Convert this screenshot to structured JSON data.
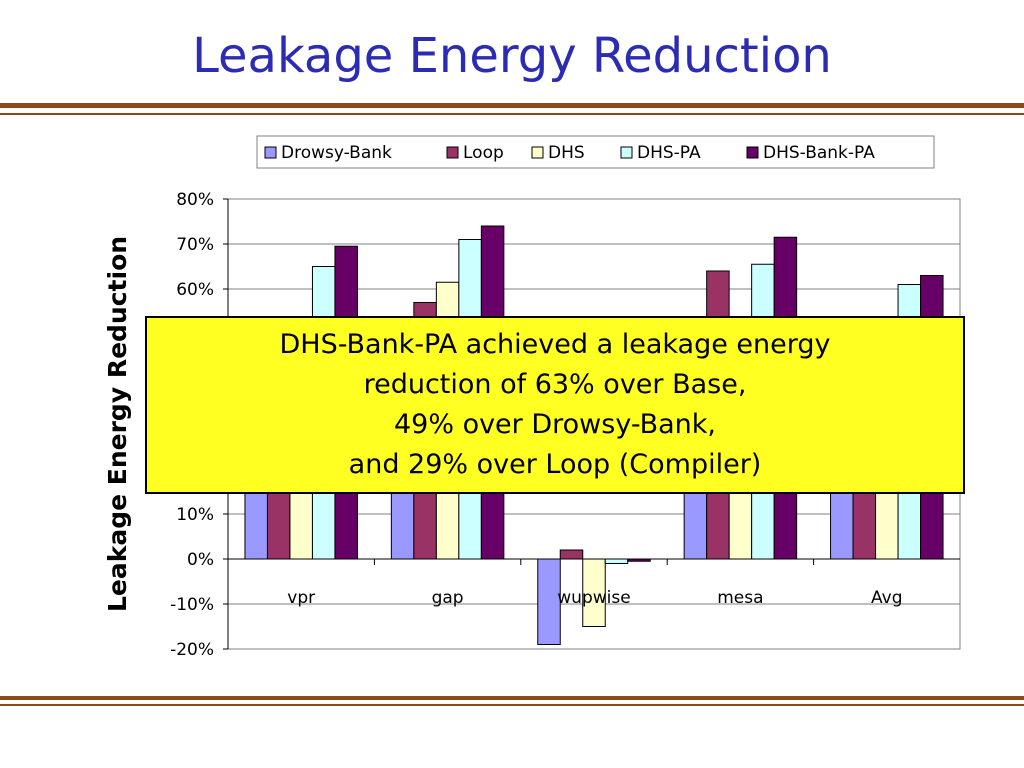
{
  "slide": {
    "title": "Leakage Energy Reduction"
  },
  "callout": {
    "lines": [
      "DHS-Bank-PA achieved a leakage energy",
      "reduction of 63% over Base,",
      "49% over Drowsy-Bank,",
      "and 29% over Loop (Compiler)"
    ]
  },
  "chart_data": {
    "type": "bar",
    "title": "",
    "xlabel": "",
    "ylabel": "Leakage Energy Reduction",
    "categories": [
      "vpr",
      "gap",
      "wupwise",
      "mesa",
      "Avg"
    ],
    "ylim": [
      -0.2,
      0.8
    ],
    "yticks": [
      0.8,
      0.7,
      0.6,
      0.5,
      0.4,
      0.3,
      0.2,
      0.1,
      0.0,
      -0.1,
      -0.2
    ],
    "ytick_labels": [
      "80%",
      "70%",
      "60%",
      "50%",
      "40%",
      "30%",
      "20%",
      "10%",
      "0%",
      "-10%",
      "-20%"
    ],
    "grid": true,
    "legend": "top",
    "series": [
      {
        "name": "Drowsy-Bank",
        "color": "#9999ff",
        "values": [
          0.3,
          0.32,
          -0.19,
          0.35,
          0.28
        ]
      },
      {
        "name": "Loop",
        "color": "#993366",
        "values": [
          0.45,
          0.57,
          0.02,
          0.64,
          0.48
        ]
      },
      {
        "name": "DHS",
        "color": "#ffffcc",
        "values": [
          0.52,
          0.615,
          -0.15,
          0.45,
          0.44
        ]
      },
      {
        "name": "DHS-PA",
        "color": "#ccffff",
        "values": [
          0.65,
          0.71,
          -0.01,
          0.655,
          0.61
        ]
      },
      {
        "name": "DHS-Bank-PA",
        "color": "#660066",
        "values": [
          0.695,
          0.74,
          -0.005,
          0.715,
          0.63
        ]
      }
    ]
  }
}
